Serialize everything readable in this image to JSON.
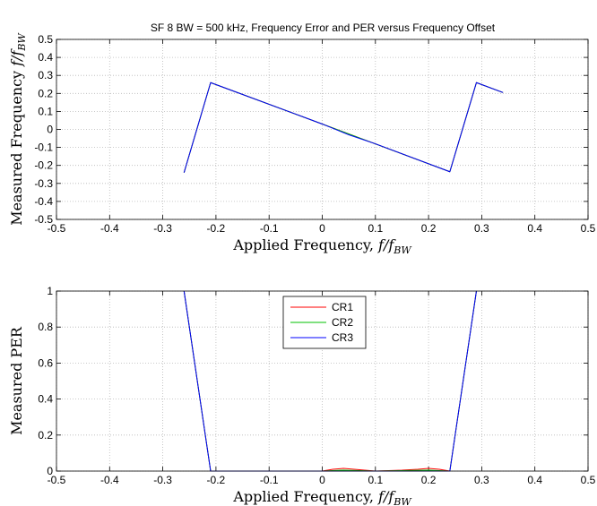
{
  "chart_data": [
    {
      "type": "line",
      "title": "SF 8 BW = 500 kHz, Frequency Error and PER versus Frequency Offset",
      "xlabel": "Applied Frequency, f/f_BW",
      "ylabel": "Measured Frequency  f/f_BW",
      "xlim": [
        -0.5,
        0.5
      ],
      "ylim": [
        -0.5,
        0.5
      ],
      "xticks": [
        "-0.5",
        "-0.4",
        "-0.3",
        "-0.2",
        "-0.1",
        "0",
        "0.1",
        "0.2",
        "0.3",
        "0.4",
        "0.5"
      ],
      "yticks": [
        "-0.5",
        "-0.4",
        "-0.3",
        "-0.2",
        "-0.1",
        "0",
        "0.1",
        "0.2",
        "0.3",
        "0.4",
        "0.5"
      ],
      "grid": true,
      "series": [
        {
          "color": "#ff0000",
          "x": [
            -0.26,
            -0.21,
            0,
            0.24,
            0.29,
            0.34
          ],
          "y": [
            -0.24,
            0.26,
            0.03,
            -0.235,
            0.26,
            0.205
          ]
        },
        {
          "color": "#00c000",
          "x": [
            -0.26,
            -0.21,
            0,
            0.24,
            0.29,
            0.34
          ],
          "y": [
            -0.24,
            0.26,
            0.03,
            -0.235,
            0.26,
            0.205
          ]
        },
        {
          "color": "#0000ff",
          "x": [
            -0.26,
            -0.21,
            -0.05,
            0,
            0.05,
            0.1,
            0.24,
            0.29,
            0.34
          ],
          "y": [
            -0.24,
            0.26,
            0.085,
            0.03,
            -0.03,
            -0.08,
            -0.235,
            0.26,
            0.205
          ]
        }
      ]
    },
    {
      "type": "line",
      "xlabel": "Applied Frequency, f/f_BW",
      "ylabel": "Measured PER",
      "xlim": [
        -0.5,
        0.5
      ],
      "ylim": [
        0,
        1
      ],
      "xticks": [
        "-0.5",
        "-0.4",
        "-0.3",
        "-0.2",
        "-0.1",
        "0",
        "0.1",
        "0.2",
        "0.3",
        "0.4",
        "0.5"
      ],
      "yticks": [
        "0",
        "0.2",
        "0.4",
        "0.6",
        "0.8",
        "1"
      ],
      "grid": true,
      "legend": "top-center",
      "series": [
        {
          "name": "CR1",
          "color": "#ff0000",
          "x": [
            -0.26,
            -0.21,
            -0.2,
            0,
            0.02,
            0.04,
            0.06,
            0.08,
            0.1,
            0.15,
            0.18,
            0.2,
            0.22,
            0.24,
            0.29
          ],
          "y": [
            1,
            0,
            0,
            0,
            0.01,
            0.015,
            0.01,
            0.005,
            0,
            0.005,
            0.01,
            0.015,
            0.01,
            0,
            1
          ]
        },
        {
          "name": "CR2",
          "color": "#00c000",
          "x": [
            -0.26,
            -0.21,
            -0.2,
            0,
            0.04,
            0.1,
            0.2,
            0.24,
            0.29
          ],
          "y": [
            1,
            0,
            0,
            0,
            0.005,
            0,
            0.005,
            0,
            1
          ]
        },
        {
          "name": "CR3",
          "color": "#0000ff",
          "x": [
            -0.26,
            -0.21,
            -0.2,
            0.24,
            0.29
          ],
          "y": [
            1,
            0,
            0,
            0,
            1
          ]
        }
      ]
    }
  ]
}
